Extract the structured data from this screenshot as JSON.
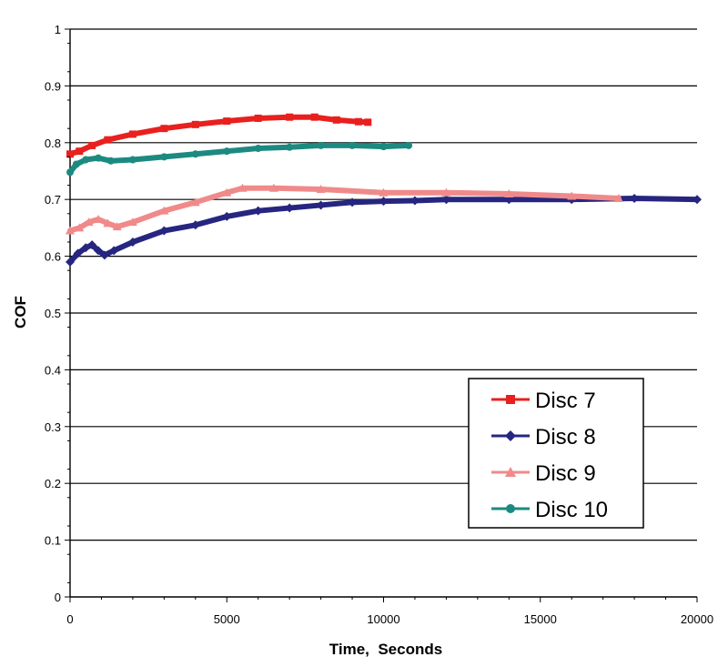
{
  "chart_data": {
    "type": "line",
    "xlabel": "Time,  Seconds",
    "ylabel": "COF",
    "xlim": [
      0,
      20000
    ],
    "ylim": [
      0,
      1
    ],
    "x_ticks": [
      "0",
      "5000",
      "10000",
      "15000",
      "20000"
    ],
    "y_ticks": [
      "0",
      "0.1",
      "0.2",
      "0.3",
      "0.4",
      "0.5",
      "0.6",
      "0.7",
      "0.8",
      "0.9",
      "1"
    ],
    "grid": "horizontal major lines",
    "legend_position": "lower-right",
    "series": [
      {
        "name": "Disc 7",
        "color": "#e8201e",
        "marker": "square",
        "points": [
          [
            0,
            0.78
          ],
          [
            300,
            0.785
          ],
          [
            700,
            0.795
          ],
          [
            1200,
            0.805
          ],
          [
            2000,
            0.815
          ],
          [
            3000,
            0.825
          ],
          [
            4000,
            0.832
          ],
          [
            5000,
            0.838
          ],
          [
            6000,
            0.843
          ],
          [
            7000,
            0.845
          ],
          [
            7800,
            0.845
          ],
          [
            8500,
            0.84
          ],
          [
            9200,
            0.837
          ],
          [
            9500,
            0.836
          ]
        ]
      },
      {
        "name": "Disc 8",
        "color": "#262680",
        "marker": "diamond",
        "points": [
          [
            0,
            0.59
          ],
          [
            250,
            0.605
          ],
          [
            500,
            0.615
          ],
          [
            700,
            0.62
          ],
          [
            900,
            0.61
          ],
          [
            1100,
            0.602
          ],
          [
            1400,
            0.61
          ],
          [
            2000,
            0.625
          ],
          [
            3000,
            0.645
          ],
          [
            4000,
            0.655
          ],
          [
            5000,
            0.67
          ],
          [
            6000,
            0.68
          ],
          [
            7000,
            0.685
          ],
          [
            8000,
            0.69
          ],
          [
            9000,
            0.695
          ],
          [
            10000,
            0.697
          ],
          [
            11000,
            0.698
          ],
          [
            12000,
            0.7
          ],
          [
            14000,
            0.7
          ],
          [
            16000,
            0.7
          ],
          [
            18000,
            0.702
          ],
          [
            20000,
            0.7
          ]
        ]
      },
      {
        "name": "Disc 9",
        "color": "#f08a8a",
        "marker": "triangle",
        "points": [
          [
            0,
            0.645
          ],
          [
            300,
            0.65
          ],
          [
            600,
            0.66
          ],
          [
            900,
            0.665
          ],
          [
            1200,
            0.658
          ],
          [
            1500,
            0.652
          ],
          [
            2000,
            0.66
          ],
          [
            3000,
            0.68
          ],
          [
            4000,
            0.695
          ],
          [
            5000,
            0.712
          ],
          [
            5500,
            0.72
          ],
          [
            6500,
            0.72
          ],
          [
            8000,
            0.718
          ],
          [
            10000,
            0.712
          ],
          [
            12000,
            0.712
          ],
          [
            14000,
            0.71
          ],
          [
            16000,
            0.706
          ],
          [
            17500,
            0.702
          ]
        ]
      },
      {
        "name": "Disc 10",
        "color": "#1c8a80",
        "marker": "circle",
        "points": [
          [
            0,
            0.748
          ],
          [
            200,
            0.762
          ],
          [
            500,
            0.77
          ],
          [
            900,
            0.773
          ],
          [
            1300,
            0.768
          ],
          [
            2000,
            0.77
          ],
          [
            3000,
            0.775
          ],
          [
            4000,
            0.78
          ],
          [
            5000,
            0.785
          ],
          [
            6000,
            0.79
          ],
          [
            7000,
            0.792
          ],
          [
            8000,
            0.795
          ],
          [
            9000,
            0.795
          ],
          [
            10000,
            0.793
          ],
          [
            10800,
            0.795
          ]
        ]
      }
    ]
  }
}
